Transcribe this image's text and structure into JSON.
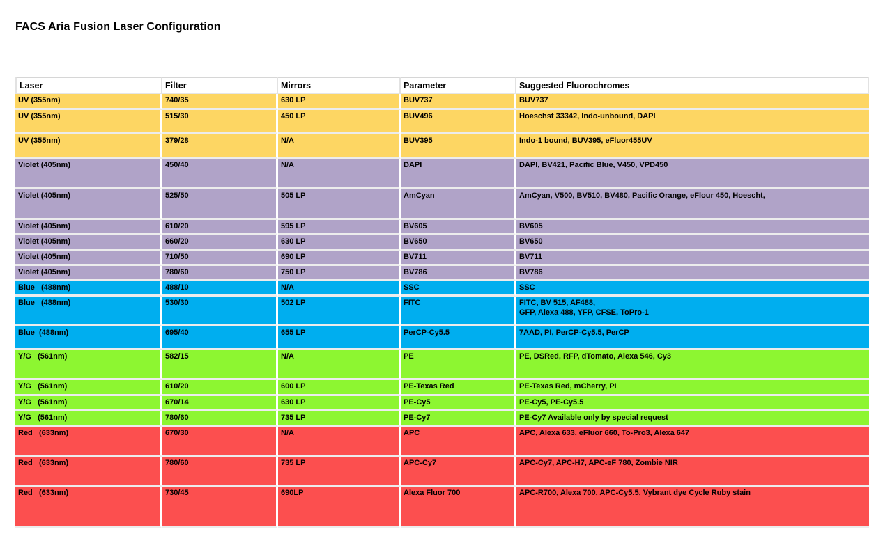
{
  "page": {
    "title": "FACS Aria Fusion Laser Configuration"
  },
  "table": {
    "columns": [
      "Laser",
      "Filter",
      "Mirrors",
      "Parameter",
      "Suggested Fluorochromes"
    ],
    "laser_colors": {
      "uv": "#FDD663",
      "violet": "#B0A3C8",
      "blue": "#00AEEF",
      "yellow_green": "#8DF631",
      "red": "#FC4F4F"
    },
    "rows": [
      {
        "group": "uv",
        "laser": "UV (355nm)",
        "filter": "740/35",
        "mirrors": "630 LP",
        "parameter": "BUV737",
        "fluorochromes": "BUV737"
      },
      {
        "group": "uv",
        "laser": "UV (355nm)",
        "filter": "515/30",
        "mirrors": "450 LP",
        "parameter": "BUV496",
        "fluorochromes": "Hoeschst 33342, Indo-unbound, DAPI"
      },
      {
        "group": "uv",
        "laser": "UV (355nm)",
        "filter": "379/28",
        "mirrors": "N/A",
        "parameter": "BUV395",
        "fluorochromes": "Indo-1 bound, BUV395, eFluor455UV"
      },
      {
        "group": "violet",
        "laser": "Violet (405nm)",
        "filter": "450/40",
        "mirrors": "N/A",
        "parameter": "DAPI",
        "fluorochromes": "DAPI, BV421, Pacific Blue, V450, VPD450"
      },
      {
        "group": "violet",
        "laser": "Violet (405nm)",
        "filter": "525/50",
        "mirrors": "505 LP",
        "parameter": "AmCyan",
        "fluorochromes": "AmCyan, V500, BV510, BV480, Pacific Orange, eFlour 450, Hoescht,"
      },
      {
        "group": "violet",
        "laser": "Violet (405nm)",
        "filter": "610/20",
        "mirrors": "595 LP",
        "parameter": "BV605",
        "fluorochromes": "BV605"
      },
      {
        "group": "violet",
        "laser": "Violet (405nm)",
        "filter": "660/20",
        "mirrors": "630 LP",
        "parameter": "BV650",
        "fluorochromes": "BV650"
      },
      {
        "group": "violet",
        "laser": "Violet (405nm)",
        "filter": "710/50",
        "mirrors": "690 LP",
        "parameter": "BV711",
        "fluorochromes": "BV711"
      },
      {
        "group": "violet",
        "laser": "Violet (405nm)",
        "filter": "780/60",
        "mirrors": "750 LP",
        "parameter": "BV786",
        "fluorochromes": "BV786"
      },
      {
        "group": "blue",
        "laser": "Blue   (488nm)",
        "filter": "488/10",
        "mirrors": "N/A",
        "parameter": "SSC",
        "fluorochromes": "SSC"
      },
      {
        "group": "blue",
        "laser": "Blue   (488nm)",
        "filter": "530/30",
        "mirrors": "502 LP",
        "parameter": "FITC",
        "fluorochromes": "FITC, BV 515, AF488,\nGFP, Alexa 488, YFP, CFSE, ToPro-1"
      },
      {
        "group": "blue",
        "laser": "Blue  (488nm)",
        "filter": "695/40",
        "mirrors": "655 LP",
        "parameter": "PerCP-Cy5.5",
        "fluorochromes": "7AAD, PI, PerCP-Cy5.5, PerCP"
      },
      {
        "group": "yellow_green",
        "laser": "Y/G   (561nm)",
        "filter": "582/15",
        "mirrors": "N/A",
        "parameter": "PE",
        "fluorochromes": "PE, DSRed, RFP, dTomato, Alexa 546, Cy3"
      },
      {
        "group": "yellow_green",
        "laser": "Y/G   (561nm)",
        "filter": "610/20",
        "mirrors": "600 LP",
        "parameter": "PE-Texas Red",
        "fluorochromes": "PE-Texas Red, mCherry, PI"
      },
      {
        "group": "yellow_green",
        "laser": "Y/G   (561nm)",
        "filter": "670/14",
        "mirrors": "630 LP",
        "parameter": "PE-Cy5",
        "fluorochromes": "PE-Cy5, PE-Cy5.5"
      },
      {
        "group": "yellow_green",
        "laser": "Y/G   (561nm)",
        "filter": "780/60",
        "mirrors": "735 LP",
        "parameter": "PE-Cy7",
        "fluorochromes": "PE-Cy7 Available only by special request"
      },
      {
        "group": "red",
        "laser": "Red   (633nm)",
        "filter": "670/30",
        "mirrors": "N/A",
        "parameter": "APC",
        "fluorochromes": "APC, Alexa 633, eFluor 660, To-Pro3, Alexa 647"
      },
      {
        "group": "red",
        "laser": "Red   (633nm)",
        "filter": "780/60",
        "mirrors": "735 LP",
        "parameter": "APC-Cy7",
        "fluorochromes": "APC-Cy7, APC-H7, APC-eF 780, Zombie NIR"
      },
      {
        "group": "red",
        "laser": "Red   (633nm)",
        "filter": "730/45",
        "mirrors": "690LP",
        "parameter": "Alexa Fluor 700",
        "fluorochromes": "APC-R700, Alexa 700, APC-Cy5.5, Vybrant dye Cycle Ruby stain"
      }
    ]
  }
}
